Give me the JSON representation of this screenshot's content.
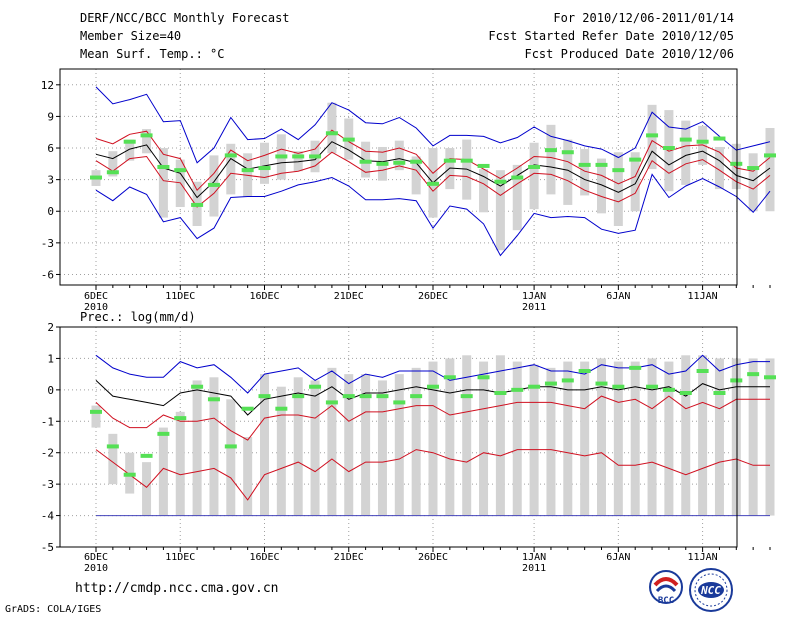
{
  "header": {
    "title": "DERF/NCC/BCC Monthly Forecast",
    "member_size": "Member Size=40",
    "variable": "Mean Surf. Temp.: °C",
    "forecast_period": "For 2010/12/06-2011/01/14",
    "started_refer": "Fcst Started Refer Date 2010/12/05",
    "produced": "Fcst Produced Date 2010/12/06"
  },
  "footer": {
    "url": "http://cmdp.ncc.cma.gov.cn",
    "credit": "GrADS: COLA/IGES",
    "logo_bcc_text": "BCC",
    "logo_ncc_text": "NCC"
  },
  "colors": {
    "grid": "#a0a0a0",
    "box": "#d3d3d3",
    "median": "#55e055",
    "mean": "#000000",
    "inner_band": "#d01020",
    "outer_band": "#0000cc",
    "floor": "#4444bb"
  },
  "chart_data": [
    {
      "type": "box",
      "title": "Mean Surf. Temp.: °C",
      "ylim": [
        -7,
        13.5
      ],
      "yticks": [
        12,
        9,
        6,
        3,
        0,
        -3,
        -6
      ],
      "ytick_labels": [
        "12",
        "9",
        "6",
        "3",
        "0",
        "-3",
        "-6"
      ],
      "xtick_labels": [
        {
          "day": 0,
          "line1": "6DEC",
          "line2": "2010"
        },
        {
          "day": 5,
          "line1": "11DEC",
          "line2": ""
        },
        {
          "day": 10,
          "line1": "16DEC",
          "line2": ""
        },
        {
          "day": 15,
          "line1": "21DEC",
          "line2": ""
        },
        {
          "day": 20,
          "line1": "26DEC",
          "line2": ""
        },
        {
          "day": 26,
          "line1": "1JAN",
          "line2": "2011"
        },
        {
          "day": 31,
          "line1": "6JAN",
          "line2": ""
        },
        {
          "day": 36,
          "line1": "11JAN",
          "line2": ""
        }
      ],
      "days": 40,
      "series": [
        {
          "name": "max",
          "color": "#0000cc",
          "values": [
            11.8,
            10.2,
            10.6,
            11.1,
            8.5,
            8.6,
            4.6,
            6,
            8.9,
            6.8,
            6.9,
            7.8,
            6.8,
            8.2,
            10.3,
            9.6,
            8.4,
            8.3,
            8.9,
            7.9,
            6.2,
            7.2,
            7.2,
            7.1,
            6.5,
            7,
            8,
            7.1,
            6.7,
            6.2,
            5.9,
            5.1,
            6,
            9.4,
            8,
            7.8,
            8.5,
            7.1,
            5.8,
            6.2,
            6.6
          ]
        },
        {
          "name": "upper",
          "color": "#d01020",
          "values": [
            6.9,
            6.4,
            7.3,
            7.6,
            5.4,
            5,
            2,
            3.6,
            5.8,
            4.8,
            5.3,
            5.9,
            5.5,
            5.9,
            7.7,
            6.6,
            5.7,
            5.6,
            6,
            5.4,
            3.6,
            5,
            4.9,
            4,
            3.1,
            4.1,
            5.2,
            5.1,
            4.7,
            3.8,
            3.4,
            2.6,
            3.3,
            6.7,
            5.7,
            6.2,
            6.3,
            5.6,
            4.1,
            3.8,
            5.1
          ]
        },
        {
          "name": "mean",
          "color": "#000000",
          "values": [
            5.4,
            5,
            5.9,
            6.3,
            4.1,
            3.6,
            1.3,
            2.8,
            5,
            4,
            4.3,
            4.6,
            4.7,
            4.9,
            6.6,
            5.8,
            4.8,
            4.7,
            5,
            4.6,
            2.7,
            4.1,
            4,
            3.3,
            2.4,
            3.4,
            4.4,
            4.2,
            3.9,
            3,
            2.5,
            1.8,
            2.6,
            5.7,
            4.4,
            5.3,
            5.7,
            4.8,
            3.4,
            2.9,
            4.1
          ]
        },
        {
          "name": "lower",
          "color": "#d01020",
          "values": [
            4.8,
            3.8,
            5,
            5.2,
            2.9,
            2.7,
            0.4,
            1.7,
            3.6,
            3.4,
            3.2,
            3.6,
            3.8,
            4.3,
            5.6,
            4.7,
            3.7,
            3.9,
            4.3,
            3.9,
            1.9,
            3.4,
            3.3,
            2.6,
            1.5,
            2.6,
            3.6,
            3.5,
            2.9,
            2,
            1.4,
            0.9,
            1.7,
            4.8,
            3.6,
            4.5,
            4.9,
            3.9,
            2.8,
            2.1,
            3.4
          ]
        },
        {
          "name": "min",
          "color": "#0000cc",
          "values": [
            2,
            1,
            2.3,
            1.6,
            -1,
            -0.6,
            -2.6,
            -1.6,
            1.3,
            1.4,
            1.4,
            1.9,
            2.5,
            2.8,
            3.2,
            2.4,
            1.1,
            1.1,
            1.2,
            1,
            -1.6,
            0.5,
            0.2,
            -1.2,
            -4.2,
            -2.3,
            -0.2,
            -0.6,
            -0.5,
            -0.6,
            -1.7,
            -2.1,
            -1.8,
            3.5,
            1.3,
            2.4,
            3.1,
            2.3,
            1.4,
            -0.1,
            1.9
          ]
        }
      ],
      "boxes": {
        "low": [
          2.4,
          3.3,
          4.8,
          5.5,
          -0.6,
          0.4,
          -1.4,
          -0.5,
          1.6,
          1.4,
          2.6,
          3,
          3.8,
          3.7,
          5.5,
          4.9,
          3.2,
          2.9,
          3.9,
          1.6,
          -0.6,
          2.1,
          1.1,
          -0.1,
          -3.7,
          -1.8,
          0.2,
          1.6,
          0.6,
          1.5,
          -0.2,
          -1.4,
          0,
          4,
          1.9,
          2.5,
          4.4,
          2.1,
          2.1,
          0,
          0
        ],
        "high": [
          3.9,
          5.7,
          6.8,
          7.8,
          6,
          4.9,
          2.8,
          5.3,
          6.4,
          5.5,
          6.5,
          7.3,
          5.7,
          6.7,
          10.3,
          8.8,
          6.6,
          6.1,
          6.7,
          5.2,
          6,
          6,
          6.8,
          4,
          3.9,
          4.4,
          6.5,
          8.2,
          6.8,
          5.9,
          5,
          5.6,
          5.6,
          10.1,
          9.6,
          8.6,
          8.1,
          6.1,
          6.4,
          5.5,
          7.9
        ],
        "median": [
          3.2,
          3.7,
          6.6,
          7.2,
          4.2,
          3.9,
          0.6,
          2.5,
          5.3,
          3.9,
          4.1,
          5.2,
          5.2,
          5.2,
          7.4,
          6.8,
          4.7,
          4.5,
          4.6,
          4.7,
          2.6,
          4.8,
          4.8,
          4.3,
          2.8,
          3.2,
          4.2,
          5.8,
          5.6,
          4.4,
          4.4,
          3.9,
          4.9,
          7.2,
          6,
          6.8,
          6.6,
          6.9,
          4.5,
          4.1,
          5.3
        ]
      }
    },
    {
      "type": "box",
      "title": "Prec.: log(mm/d)",
      "ylim": [
        -5,
        2
      ],
      "yticks": [
        2,
        1,
        0,
        -1,
        -2,
        -3,
        -4,
        -5
      ],
      "ytick_labels": [
        "2",
        "1",
        "0",
        "-1",
        "-2",
        "-3",
        "-4",
        "-5"
      ],
      "xtick_labels": [
        {
          "day": 0,
          "line1": "6DEC",
          "line2": "2010"
        },
        {
          "day": 5,
          "line1": "11DEC",
          "line2": ""
        },
        {
          "day": 10,
          "line1": "16DEC",
          "line2": ""
        },
        {
          "day": 15,
          "line1": "21DEC",
          "line2": ""
        },
        {
          "day": 20,
          "line1": "26DEC",
          "line2": ""
        },
        {
          "day": 26,
          "line1": "1JAN",
          "line2": "2011"
        },
        {
          "day": 31,
          "line1": "6JAN",
          "line2": ""
        },
        {
          "day": 36,
          "line1": "11JAN",
          "line2": ""
        }
      ],
      "days": 40,
      "floor": -4,
      "series": [
        {
          "name": "max",
          "color": "#0000cc",
          "values": [
            1.1,
            0.7,
            0.5,
            0.4,
            0.4,
            0.9,
            0.7,
            0.8,
            0.4,
            -0.1,
            0.5,
            0.6,
            0.7,
            0.3,
            0.6,
            0.2,
            0.5,
            0.4,
            0.6,
            0.6,
            0.6,
            0.3,
            0.4,
            0.5,
            0.6,
            0.7,
            0.8,
            0.6,
            0.6,
            0.5,
            0.8,
            0.7,
            0.7,
            0.8,
            0.5,
            0.6,
            1.1,
            0.6,
            0.8,
            0.9,
            0.9
          ]
        },
        {
          "name": "upper",
          "color": "#000000",
          "values": [
            0.3,
            -0.2,
            -0.3,
            -0.4,
            -0.5,
            -0.1,
            0,
            -0.1,
            -0.2,
            -0.8,
            -0.3,
            -0.2,
            -0.1,
            -0.2,
            0.1,
            -0.3,
            -0.1,
            -0.1,
            0,
            0.1,
            0,
            -0.1,
            0,
            0,
            -0.1,
            0,
            0.1,
            0.1,
            0,
            0,
            0.1,
            0,
            0.1,
            0,
            0.1,
            -0.2,
            0.2,
            0,
            0.1,
            0.1,
            0.1
          ]
        },
        {
          "name": "mean",
          "color": "#d01020",
          "values": [
            -0.4,
            -0.9,
            -1.2,
            -1.2,
            -0.8,
            -1,
            -1,
            -0.9,
            -1.3,
            -1.6,
            -0.9,
            -0.8,
            -0.8,
            -0.9,
            -0.5,
            -1,
            -0.7,
            -0.7,
            -0.6,
            -0.5,
            -0.5,
            -0.8,
            -0.7,
            -0.6,
            -0.5,
            -0.4,
            -0.4,
            -0.4,
            -0.5,
            -0.6,
            -0.2,
            -0.4,
            -0.3,
            -0.6,
            -0.2,
            -0.6,
            -0.4,
            -0.6,
            -0.3,
            -0.3,
            -0.3
          ]
        },
        {
          "name": "lower",
          "color": "#d01020",
          "values": [
            -1.9,
            -2.3,
            -2.7,
            -3.1,
            -2.5,
            -2.7,
            -2.6,
            -2.5,
            -2.8,
            -3.5,
            -2.7,
            -2.5,
            -2.3,
            -2.6,
            -2.2,
            -2.6,
            -2.3,
            -2.3,
            -2.2,
            -1.9,
            -2,
            -2.2,
            -2.3,
            -2,
            -2.1,
            -1.9,
            -1.9,
            -1.9,
            -2,
            -2.1,
            -2,
            -2.4,
            -2.4,
            -2.3,
            -2.5,
            -2.7,
            -2.5,
            -2.3,
            -2.2,
            -2.4,
            -2.4
          ]
        }
      ],
      "boxes": {
        "low": [
          -1.2,
          -3,
          -3.3,
          -4,
          -4,
          -4,
          -4,
          -4,
          -4,
          -4,
          -4,
          -4,
          -4,
          -4,
          -4,
          -4,
          -4,
          -4,
          -4,
          -4,
          -4,
          -4,
          -4,
          -4,
          -4,
          -4,
          -4,
          -4,
          -4,
          -4,
          -4,
          -4,
          -4,
          -4,
          -4,
          -4,
          -4,
          -4,
          -4,
          -4,
          -4
        ],
        "high": [
          -0.5,
          -1.4,
          -2,
          -2.3,
          -1.2,
          -0.7,
          0.3,
          0.4,
          -0.3,
          -1.5,
          0.5,
          0.1,
          0.4,
          0.3,
          0.7,
          0.5,
          0.5,
          0.3,
          0.5,
          0.7,
          0.9,
          1,
          1.1,
          0.9,
          1.1,
          0.9,
          0.8,
          0.7,
          0.9,
          0.9,
          1,
          0.9,
          0.9,
          1,
          0.9,
          1.1,
          1.1,
          1,
          1,
          1,
          1
        ],
        "median": [
          -0.7,
          -1.8,
          -2.7,
          -2.1,
          -1.4,
          -0.9,
          0.1,
          -0.3,
          -1.8,
          -0.6,
          -0.2,
          -0.6,
          -0.2,
          0.1,
          -0.4,
          -0.2,
          -0.2,
          -0.2,
          -0.4,
          -0.2,
          0.1,
          0.4,
          -0.2,
          0.4,
          -0.1,
          0,
          0.1,
          0.2,
          0.3,
          0.6,
          0.2,
          0.1,
          0.7,
          0.1,
          0,
          -0.1,
          0.6,
          -0.1,
          0.3,
          0.5,
          0.4
        ]
      }
    }
  ]
}
